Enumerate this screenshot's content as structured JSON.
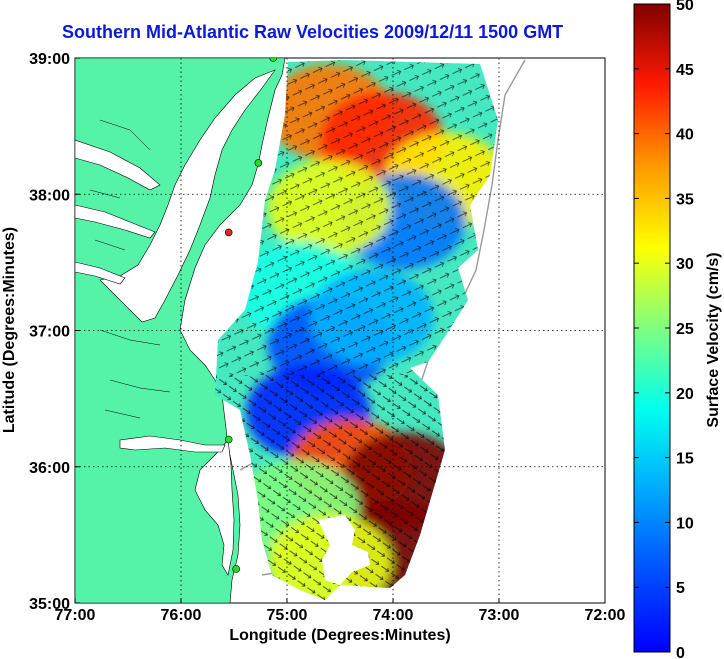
{
  "title": "Southern Mid-Atlantic Raw Velocities 2009/12/11 1500 GMT",
  "x_axis": {
    "label": "Longitude (Degrees:Minutes)",
    "ticks": [
      "77:00",
      "76:00",
      "75:00",
      "74:00",
      "73:00",
      "72:00"
    ]
  },
  "y_axis": {
    "label": "Latitude (Degrees:Minutes)",
    "ticks": [
      "39:00",
      "38:00",
      "37:00",
      "36:00",
      "35:00"
    ]
  },
  "colorbar": {
    "label": "Surface Velocity (cm/s)",
    "ticks": [
      "50",
      "45",
      "40",
      "35",
      "30",
      "25",
      "20",
      "15",
      "10",
      "5",
      "0"
    ],
    "min": 0,
    "max": 50,
    "colormap": "jet"
  },
  "colors": {
    "land": "#55f3a8",
    "water": "#ffffff",
    "title": "#0a1ad8",
    "grid": "#000000",
    "station_green": "#22dd22",
    "station_red": "#ee2222"
  },
  "chart_data": {
    "type": "heatmap",
    "title": "Southern Mid-Atlantic Raw Velocities 2009/12/11 1500 GMT",
    "xlabel": "Longitude (Degrees:Minutes)",
    "ylabel": "Latitude (Degrees:Minutes)",
    "xlim": [
      -77,
      -72
    ],
    "ylim": [
      35,
      39
    ],
    "grid": true,
    "colorbar_label": "Surface Velocity (cm/s)",
    "clim": [
      0,
      50
    ],
    "regions": [
      {
        "lon": -74.6,
        "lat": 38.6,
        "speed": 38
      },
      {
        "lon": -74.1,
        "lat": 38.4,
        "speed": 42
      },
      {
        "lon": -73.5,
        "lat": 38.1,
        "speed": 32
      },
      {
        "lon": -73.9,
        "lat": 37.8,
        "speed": 12
      },
      {
        "lon": -74.6,
        "lat": 37.9,
        "speed": 30
      },
      {
        "lon": -74.9,
        "lat": 37.3,
        "speed": 20
      },
      {
        "lon": -74.6,
        "lat": 36.9,
        "speed": 10
      },
      {
        "lon": -74.2,
        "lat": 37.1,
        "speed": 15
      },
      {
        "lon": -74.8,
        "lat": 36.4,
        "speed": 8
      },
      {
        "lon": -74.4,
        "lat": 36.0,
        "speed": 40
      },
      {
        "lon": -73.9,
        "lat": 35.9,
        "speed": 50
      },
      {
        "lon": -74.0,
        "lat": 35.4,
        "speed": 50
      },
      {
        "lon": -74.9,
        "lat": 35.7,
        "speed": 25
      },
      {
        "lon": -74.6,
        "lat": 35.3,
        "speed": 30
      }
    ],
    "stations": [
      {
        "lon": -75.13,
        "lat": 39.0,
        "color": "green"
      },
      {
        "lon": -75.27,
        "lat": 38.23,
        "color": "green"
      },
      {
        "lon": -75.55,
        "lat": 37.72,
        "color": "red"
      },
      {
        "lon": -75.55,
        "lat": 36.2,
        "color": "green"
      },
      {
        "lon": -75.48,
        "lat": 35.25,
        "color": "green"
      }
    ]
  }
}
